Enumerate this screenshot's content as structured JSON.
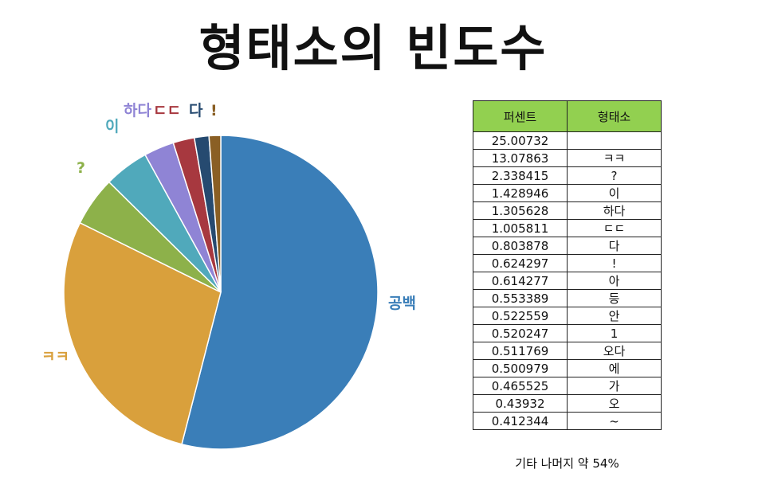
{
  "title": "형태소의 빈도수",
  "chart_data": [
    {
      "type": "pie",
      "slices": [
        {
          "label": "공백",
          "value": 54.0,
          "color": "#3a7eb8"
        },
        {
          "label": "ㅋㅋ",
          "value": 28.3,
          "color": "#d9a03c"
        },
        {
          "label": "?",
          "value": 5.1,
          "color": "#8db14a"
        },
        {
          "label": "이",
          "value": 4.6,
          "color": "#50a9bb"
        },
        {
          "label": "하다",
          "value": 3.1,
          "color": "#8f84d5"
        },
        {
          "label": "ㄷㄷ",
          "value": 2.2,
          "color": "#a7383f"
        },
        {
          "label": "다",
          "value": 1.5,
          "color": "#264a70"
        },
        {
          "label": "!",
          "value": 1.2,
          "color": "#8a5f24"
        }
      ]
    },
    {
      "type": "table",
      "columns": [
        "퍼센트",
        "형태소"
      ],
      "rows": [
        [
          "25.00732",
          ""
        ],
        [
          "13.07863",
          "ㅋㅋ"
        ],
        [
          "2.338415",
          "?"
        ],
        [
          "1.428946",
          "이"
        ],
        [
          "1.305628",
          "하다"
        ],
        [
          "1.005811",
          "ㄷㄷ"
        ],
        [
          "0.803878",
          "다"
        ],
        [
          "0.624297",
          "!"
        ],
        [
          "0.614277",
          "아"
        ],
        [
          "0.553389",
          "등"
        ],
        [
          "0.522559",
          "안"
        ],
        [
          "0.520247",
          "1"
        ],
        [
          "0.511769",
          "오다"
        ],
        [
          "0.500979",
          "에"
        ],
        [
          "0.465525",
          "가"
        ],
        [
          "0.43932",
          "오"
        ],
        [
          "0.412344",
          "~"
        ]
      ]
    }
  ],
  "footnote": "기타 나머지 약 54%"
}
